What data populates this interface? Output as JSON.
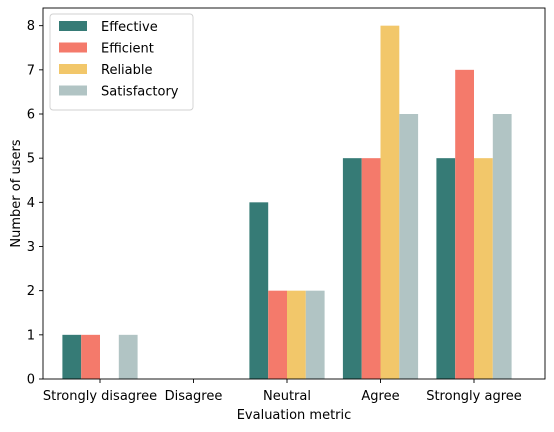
{
  "chart_data": {
    "type": "bar",
    "title": "",
    "xlabel": "Evaluation metric",
    "ylabel": "Number of users",
    "categories": [
      "Strongly disagree",
      "Disagree",
      "Neutral",
      "Agree",
      "Strongly agree"
    ],
    "series": [
      {
        "name": "Effective",
        "color": "#367b76",
        "values": [
          1,
          0,
          4,
          5,
          5
        ]
      },
      {
        "name": "Efficient",
        "color": "#f47a6b",
        "values": [
          1,
          0,
          2,
          5,
          7
        ]
      },
      {
        "name": "Reliable",
        "color": "#f2c76a",
        "values": [
          0,
          0,
          2,
          8,
          5
        ]
      },
      {
        "name": "Satisfactory",
        "color": "#b1c4c4",
        "values": [
          1,
          0,
          2,
          6,
          6
        ]
      }
    ],
    "ylim": [
      0,
      8.4
    ],
    "yticks": [
      0,
      1,
      2,
      3,
      4,
      5,
      6,
      7,
      8
    ],
    "grid": false,
    "legend_position": "top-left"
  }
}
